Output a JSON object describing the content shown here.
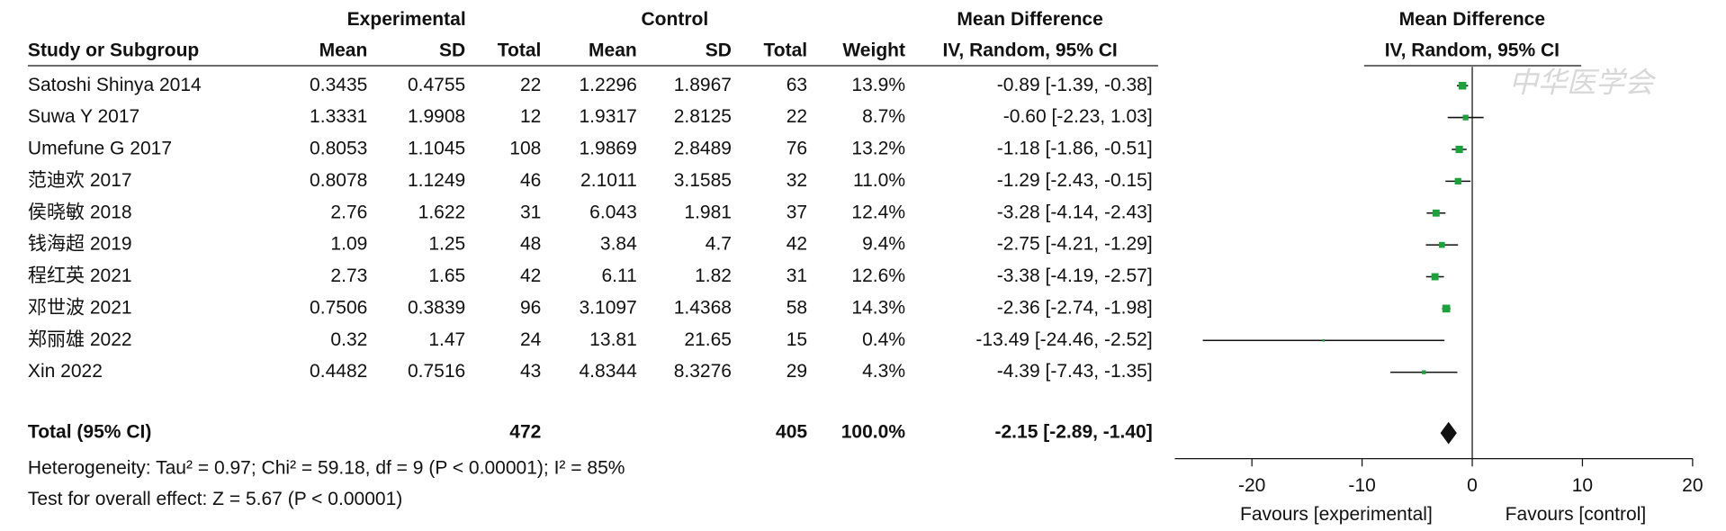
{
  "chart_data": {
    "type": "forest",
    "group_headers": [
      "Experimental",
      "Control",
      "Mean Difference",
      "Mean Difference"
    ],
    "columns": [
      "Study or Subgroup",
      "Mean",
      "SD",
      "Total",
      "Mean",
      "SD",
      "Total",
      "Weight",
      "IV, Random, 95% CI",
      "IV, Random, 95% CI"
    ],
    "studies": [
      "Satoshi Shinya 2014",
      "Suwa Y 2017",
      "Umefune G 2017",
      "范迪欢 2017",
      "侯晓敏 2018",
      "钱海超 2019",
      "程红英 2021",
      "邓世波 2021",
      "郑丽雄 2022",
      "Xin 2022"
    ],
    "exp_mean": [
      0.3435,
      1.3331,
      0.8053,
      0.8078,
      2.76,
      1.09,
      2.73,
      0.7506,
      0.32,
      0.4482
    ],
    "exp_sd": [
      0.4755,
      1.9908,
      1.1045,
      1.1249,
      1.622,
      1.25,
      1.65,
      0.3839,
      1.47,
      0.7516
    ],
    "exp_total": [
      22,
      12,
      108,
      46,
      31,
      48,
      42,
      96,
      24,
      43
    ],
    "ctl_mean": [
      1.2296,
      1.9317,
      1.9869,
      2.1011,
      6.043,
      3.84,
      6.11,
      3.1097,
      13.81,
      4.8344
    ],
    "ctl_sd": [
      1.8967,
      2.8125,
      2.8489,
      3.1585,
      1.981,
      4.7,
      1.82,
      1.4368,
      21.65,
      8.3276
    ],
    "ctl_total": [
      63,
      22,
      76,
      32,
      37,
      42,
      31,
      58,
      15,
      29
    ],
    "weights": [
      13.9,
      8.7,
      13.2,
      11.0,
      12.4,
      9.4,
      12.6,
      14.3,
      0.4,
      4.3
    ],
    "weight_labels": [
      "13.9%",
      "8.7%",
      "13.2%",
      "11.0%",
      "12.4%",
      "9.4%",
      "12.6%",
      "14.3%",
      "0.4%",
      "4.3%"
    ],
    "md": [
      -0.89,
      -0.6,
      -1.18,
      -1.29,
      -3.28,
      -2.75,
      -3.38,
      -2.36,
      -13.49,
      -4.39
    ],
    "ci_low": [
      -1.39,
      -2.23,
      -1.86,
      -2.43,
      -4.14,
      -4.21,
      -4.19,
      -2.74,
      -24.46,
      -7.43
    ],
    "ci_high": [
      -0.38,
      1.03,
      -0.51,
      -0.15,
      -2.43,
      -1.29,
      -2.57,
      -1.98,
      -2.52,
      -1.35
    ],
    "ci_labels": [
      "-0.89 [-1.39, -0.38]",
      "-0.60 [-2.23, 1.03]",
      "-1.18 [-1.86, -0.51]",
      "-1.29 [-2.43, -0.15]",
      "-3.28 [-4.14, -2.43]",
      "-2.75 [-4.21, -1.29]",
      "-3.38 [-4.19, -2.57]",
      "-2.36 [-2.74, -1.98]",
      "-13.49 [-24.46, -2.52]",
      "-4.39 [-7.43, -1.35]"
    ],
    "total": {
      "label": "Total (95% CI)",
      "exp_total": 472,
      "ctl_total": 405,
      "weight": 100.0,
      "weight_label": "100.0%",
      "md": -2.15,
      "ci_low": -2.89,
      "ci_high": -1.4,
      "ci_label": "-2.15 [-2.89, -1.40]"
    },
    "heterogeneity": "Heterogeneity: Tau² = 0.97; Chi² = 59.18, df = 9 (P < 0.00001); I² = 85%",
    "overall_effect": "Test for overall effect: Z = 5.67 (P < 0.00001)",
    "xlim": [
      -27,
      20
    ],
    "xticks": [
      -20,
      -10,
      0,
      10,
      20
    ],
    "favours_left": "Favours [experimental]",
    "favours_right": "Favours [control]",
    "color": "#1aa33a",
    "watermark": "中华医学会"
  }
}
